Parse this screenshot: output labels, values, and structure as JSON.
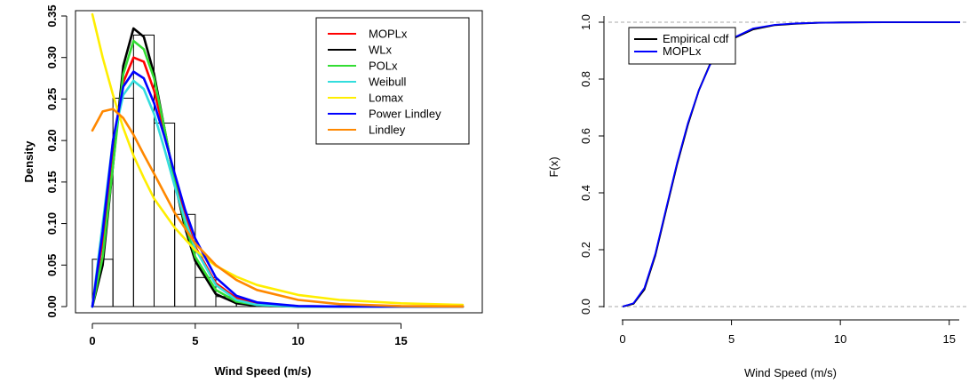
{
  "chart_data": [
    {
      "type": "histogram-density",
      "xlabel": "Wind Speed (m/s)",
      "ylabel": "Density",
      "xlim": [
        0,
        18
      ],
      "ylim": [
        0,
        0.35
      ],
      "x_ticks": [
        "0",
        "5",
        "10",
        "15"
      ],
      "y_ticks": [
        "0.00",
        "0.05",
        "0.10",
        "0.15",
        "0.20",
        "0.25",
        "0.30",
        "0.35"
      ],
      "histogram": {
        "bins": [
          [
            0,
            1
          ],
          [
            1,
            2
          ],
          [
            2,
            3
          ],
          [
            3,
            4
          ],
          [
            4,
            5
          ],
          [
            5,
            6
          ],
          [
            6,
            7
          ],
          [
            7,
            8
          ],
          [
            8,
            9
          ],
          [
            9,
            10
          ]
        ],
        "values": [
          0.057,
          0.251,
          0.327,
          0.221,
          0.111,
          0.035,
          0.012,
          0.004,
          0.002,
          0.001
        ]
      },
      "legend_position": "top-right",
      "series": [
        {
          "name": "MOPLx",
          "color": "#ff0000",
          "x": [
            0,
            0.5,
            1,
            1.5,
            2,
            2.5,
            3,
            3.5,
            4,
            4.5,
            5,
            6,
            7,
            8,
            10,
            12,
            15,
            18
          ],
          "y": [
            0.0,
            0.08,
            0.19,
            0.27,
            0.3,
            0.295,
            0.26,
            0.21,
            0.155,
            0.11,
            0.072,
            0.028,
            0.01,
            0.004,
            0.0005,
            0.0001,
            0,
            0
          ]
        },
        {
          "name": "WLx",
          "color": "#000000",
          "x": [
            0,
            0.5,
            1,
            1.5,
            2,
            2.5,
            3,
            3.5,
            4,
            4.5,
            5,
            6,
            7,
            8,
            10,
            12,
            15,
            18
          ],
          "y": [
            0.0,
            0.05,
            0.17,
            0.29,
            0.335,
            0.325,
            0.28,
            0.215,
            0.15,
            0.095,
            0.055,
            0.015,
            0.004,
            0.001,
            0,
            0,
            0,
            0
          ]
        },
        {
          "name": "POLx",
          "color": "#33dd33",
          "x": [
            0,
            0.5,
            1,
            1.5,
            2,
            2.5,
            3,
            3.5,
            4,
            4.5,
            5,
            6,
            7,
            8,
            10,
            12,
            15,
            18
          ],
          "y": [
            0.0,
            0.06,
            0.17,
            0.28,
            0.32,
            0.31,
            0.275,
            0.215,
            0.15,
            0.1,
            0.06,
            0.02,
            0.006,
            0.002,
            0,
            0,
            0,
            0
          ]
        },
        {
          "name": "Weibull",
          "color": "#33dddd",
          "x": [
            0,
            0.5,
            1,
            1.5,
            2,
            2.5,
            3,
            3.5,
            4,
            4.5,
            5,
            6,
            7,
            8,
            10,
            12,
            15,
            18
          ],
          "y": [
            0.0,
            0.1,
            0.2,
            0.255,
            0.272,
            0.262,
            0.232,
            0.19,
            0.145,
            0.105,
            0.07,
            0.026,
            0.008,
            0.002,
            0,
            0,
            0,
            0
          ]
        },
        {
          "name": "Lomax",
          "color": "#ffee00",
          "x": [
            0,
            0.5,
            1,
            1.5,
            2,
            2.5,
            3,
            4,
            5,
            6,
            7,
            8,
            10,
            12,
            15,
            18
          ],
          "y": [
            0.352,
            0.3,
            0.255,
            0.215,
            0.182,
            0.155,
            0.13,
            0.095,
            0.068,
            0.049,
            0.036,
            0.026,
            0.014,
            0.008,
            0.004,
            0.002
          ]
        },
        {
          "name": "Power Lindley",
          "color": "#0000ff",
          "x": [
            0,
            0.5,
            1,
            1.5,
            2,
            2.5,
            3,
            3.5,
            4,
            4.5,
            5,
            6,
            7,
            8,
            10,
            12,
            15,
            18
          ],
          "y": [
            0.0,
            0.09,
            0.2,
            0.265,
            0.283,
            0.275,
            0.245,
            0.205,
            0.16,
            0.117,
            0.082,
            0.035,
            0.013,
            0.005,
            0.0006,
            0.0001,
            0,
            0
          ]
        },
        {
          "name": "Lindley",
          "color": "#ff8800",
          "x": [
            0,
            0.5,
            1,
            1.5,
            2,
            2.5,
            3,
            4,
            5,
            6,
            7,
            8,
            10,
            12,
            15,
            18
          ],
          "y": [
            0.212,
            0.235,
            0.238,
            0.227,
            0.207,
            0.183,
            0.16,
            0.113,
            0.076,
            0.05,
            0.032,
            0.02,
            0.008,
            0.003,
            0.0006,
            0.0001
          ]
        }
      ]
    },
    {
      "type": "line",
      "xlabel": "Wind Speed (m/s)",
      "ylabel": "F(x)",
      "xlim": [
        0,
        15.5
      ],
      "ylim": [
        0,
        1
      ],
      "x_ticks": [
        "0",
        "5",
        "10",
        "15"
      ],
      "y_ticks": [
        "0.0",
        "0.2",
        "0.4",
        "0.6",
        "0.8",
        "1.0"
      ],
      "grid": "dashed horizontal lines at 0 and 1",
      "legend_position": "top-left",
      "series": [
        {
          "name": "Empirical cdf",
          "color": "#000000",
          "x": [
            0,
            0.5,
            1,
            1.5,
            2,
            2.5,
            3,
            3.5,
            4,
            4.5,
            5,
            6,
            7,
            8,
            9,
            10,
            12,
            15.5
          ],
          "y": [
            0,
            0.01,
            0.06,
            0.18,
            0.34,
            0.5,
            0.64,
            0.76,
            0.85,
            0.905,
            0.94,
            0.975,
            0.99,
            0.995,
            0.998,
            0.999,
            1.0,
            1.0
          ]
        },
        {
          "name": "MOPLx",
          "color": "#0000ff",
          "x": [
            0,
            0.5,
            1,
            1.5,
            2,
            2.5,
            3,
            3.5,
            4,
            4.5,
            5,
            6,
            7,
            8,
            9,
            10,
            12,
            15.5
          ],
          "y": [
            0,
            0.012,
            0.065,
            0.185,
            0.345,
            0.505,
            0.645,
            0.76,
            0.848,
            0.905,
            0.942,
            0.978,
            0.991,
            0.996,
            0.998,
            0.999,
            1.0,
            1.0
          ]
        }
      ]
    }
  ]
}
